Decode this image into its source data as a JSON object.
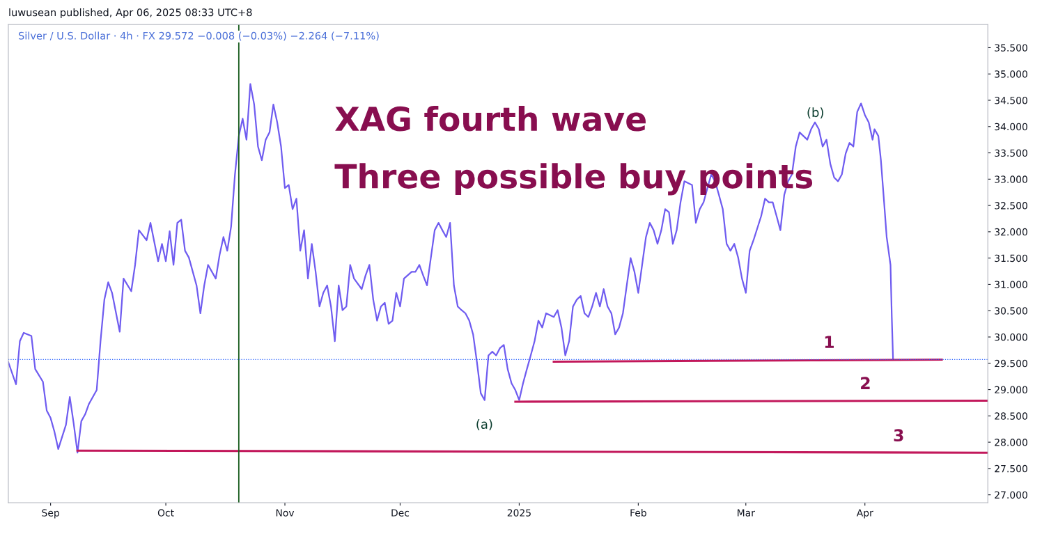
{
  "chart_data": {
    "type": "line",
    "subtitle": "Silver / U.S. Dollar · 4h · FX 29.572 −0.008 (−0.03%) −2.264 (−7.11%)",
    "annotations": [
      "luwusean published, Apr 06, 2025 08:33 UTC+8",
      "XAG fourth wave",
      "Three possible buy points",
      "1",
      "2",
      "3",
      "(a)",
      "(b)"
    ],
    "xlim": [
      "2024-08-21",
      "2025-05-03"
    ],
    "xticks": [
      {
        "value": "2024-09-01",
        "label": "Sep"
      },
      {
        "value": "2024-10-01",
        "label": "Oct"
      },
      {
        "value": "2024-11-01",
        "label": "Nov"
      },
      {
        "value": "2024-12-01",
        "label": "Dec"
      },
      {
        "value": "2025-01-01",
        "label": "2025"
      },
      {
        "value": "2025-02-01",
        "label": "Feb"
      },
      {
        "value": "2025-03-01",
        "label": "Mar"
      },
      {
        "value": "2025-04-01",
        "label": "Apr"
      }
    ],
    "ylim": [
      26.85,
      35.94
    ],
    "yticks": [
      {
        "value": 27,
        "label": "27.000"
      },
      {
        "value": 27.5,
        "label": "27.500"
      },
      {
        "value": 28,
        "label": "28.000"
      },
      {
        "value": 28.5,
        "label": "28.500"
      },
      {
        "value": 29,
        "label": "29.000"
      },
      {
        "value": 29.5,
        "label": "29.500"
      },
      {
        "value": 30,
        "label": "30.000"
      },
      {
        "value": 30.5,
        "label": "30.500"
      },
      {
        "value": 31,
        "label": "31.000"
      },
      {
        "value": 31.5,
        "label": "31.500"
      },
      {
        "value": 32,
        "label": "32.000"
      },
      {
        "value": 32.5,
        "label": "32.500"
      },
      {
        "value": 33,
        "label": "33.000"
      },
      {
        "value": 33.5,
        "label": "33.500"
      },
      {
        "value": 34,
        "label": "34.000"
      },
      {
        "value": 34.5,
        "label": "34.500"
      },
      {
        "value": 35,
        "label": "35.000"
      },
      {
        "value": 35.5,
        "label": "35.500"
      }
    ],
    "grid": false,
    "ref_lines": [
      {
        "axis": "x",
        "value": "2024-10-20",
        "color": "#1b5e20",
        "line_style": "solid"
      },
      {
        "axis": "y",
        "value": 29.572,
        "color": "#2962ff",
        "line_style": "dotted"
      }
    ],
    "series": [
      {
        "color": "#6f5cf0",
        "x": [
          "2024-08-21",
          "2024-08-23",
          "2024-08-24",
          "2024-08-25",
          "2024-08-27",
          "2024-08-28",
          "2024-08-30",
          "2024-08-31",
          "2024-09-01",
          "2024-09-02",
          "2024-09-03",
          "2024-09-05",
          "2024-09-06",
          "2024-09-07",
          "2024-09-08",
          "2024-09-09",
          "2024-09-10",
          "2024-09-11",
          "2024-09-13",
          "2024-09-14",
          "2024-09-15",
          "2024-09-16",
          "2024-09-17",
          "2024-09-19",
          "2024-09-20",
          "2024-09-22",
          "2024-09-23",
          "2024-09-24",
          "2024-09-26",
          "2024-09-27",
          "2024-09-29",
          "2024-09-30",
          "2024-10-01",
          "2024-10-02",
          "2024-10-03",
          "2024-10-04",
          "2024-10-05",
          "2024-10-06",
          "2024-10-07",
          "2024-10-09",
          "2024-10-10",
          "2024-10-11",
          "2024-10-12",
          "2024-10-14",
          "2024-10-15",
          "2024-10-16",
          "2024-10-17",
          "2024-10-18",
          "2024-10-19",
          "2024-10-20",
          "2024-10-21",
          "2024-10-22",
          "2024-10-23",
          "2024-10-24",
          "2024-10-25",
          "2024-10-26",
          "2024-10-27",
          "2024-10-28",
          "2024-10-29",
          "2024-10-30",
          "2024-10-31",
          "2024-11-01",
          "2024-11-02",
          "2024-11-03",
          "2024-11-04",
          "2024-11-05",
          "2024-11-06",
          "2024-11-07",
          "2024-11-08",
          "2024-11-09",
          "2024-11-10",
          "2024-11-11",
          "2024-11-12",
          "2024-11-13",
          "2024-11-14",
          "2024-11-15",
          "2024-11-16",
          "2024-11-17",
          "2024-11-18",
          "2024-11-19",
          "2024-11-21",
          "2024-11-22",
          "2024-11-23",
          "2024-11-24",
          "2024-11-25",
          "2024-11-26",
          "2024-11-27",
          "2024-11-28",
          "2024-11-29",
          "2024-11-30",
          "2024-12-01",
          "2024-12-02",
          "2024-12-04",
          "2024-12-05",
          "2024-12-06",
          "2024-12-07",
          "2024-12-08",
          "2024-12-10",
          "2024-12-11",
          "2024-12-12",
          "2024-12-13",
          "2024-12-14",
          "2024-12-15",
          "2024-12-16",
          "2024-12-17",
          "2024-12-18",
          "2024-12-19",
          "2024-12-20",
          "2024-12-21",
          "2024-12-22",
          "2024-12-23",
          "2024-12-24",
          "2024-12-25",
          "2024-12-26",
          "2024-12-27",
          "2024-12-28",
          "2024-12-29",
          "2024-12-30",
          "2024-12-31",
          "2025-01-01",
          "2025-01-02",
          "2025-01-03",
          "2025-01-04",
          "2025-01-05",
          "2025-01-06",
          "2025-01-07",
          "2025-01-08",
          "2025-01-10",
          "2025-01-11",
          "2025-01-12",
          "2025-01-13",
          "2025-01-14",
          "2025-01-15",
          "2025-01-16",
          "2025-01-17",
          "2025-01-18",
          "2025-01-19",
          "2025-01-20",
          "2025-01-21",
          "2025-01-22",
          "2025-01-23",
          "2025-01-24",
          "2025-01-25",
          "2025-01-26",
          "2025-01-27",
          "2025-01-28",
          "2025-01-29",
          "2025-01-30",
          "2025-01-31",
          "2025-02-01",
          "2025-02-02",
          "2025-02-03",
          "2025-02-04",
          "2025-02-05",
          "2025-02-06",
          "2025-02-07",
          "2025-02-08",
          "2025-02-09",
          "2025-02-10",
          "2025-02-11",
          "2025-02-12",
          "2025-02-13",
          "2025-02-15",
          "2025-02-16",
          "2025-02-17",
          "2025-02-18",
          "2025-02-19",
          "2025-02-20",
          "2025-02-21",
          "2025-02-22",
          "2025-02-23",
          "2025-02-24",
          "2025-02-25",
          "2025-02-26",
          "2025-02-27",
          "2025-02-28",
          "2025-03-01",
          "2025-03-02",
          "2025-03-03",
          "2025-03-05",
          "2025-03-06",
          "2025-03-07",
          "2025-03-08",
          "2025-03-09",
          "2025-03-10",
          "2025-03-11",
          "2025-03-12",
          "2025-03-13",
          "2025-03-14",
          "2025-03-15",
          "2025-03-16",
          "2025-03-17",
          "2025-03-18",
          "2025-03-19",
          "2025-03-20",
          "2025-03-21",
          "2025-03-22",
          "2025-03-23",
          "2025-03-24",
          "2025-03-25",
          "2025-03-26",
          "2025-03-27",
          "2025-03-28",
          "2025-03-29",
          "2025-03-30",
          "2025-03-31",
          "2025-04-01",
          "2025-04-02",
          "2025-04-03",
          "2025-04-03T12:00",
          "2025-04-04T12:00",
          "2025-04-05T04:00",
          "2025-04-06T00:00",
          "2025-04-06T16:00",
          "2025-04-07T16:00",
          "2025-04-08T00:00",
          "2025-04-08T08:00"
        ],
        "values": [
          29.52,
          29.1,
          29.92,
          30.08,
          30.02,
          29.39,
          29.15,
          28.6,
          28.46,
          28.2,
          27.87,
          28.33,
          28.86,
          28.36,
          27.8,
          28.4,
          28.53,
          28.73,
          28.99,
          29.92,
          30.71,
          31.04,
          30.84,
          30.1,
          31.11,
          30.87,
          31.37,
          32.03,
          31.84,
          32.17,
          31.44,
          31.77,
          31.44,
          32.01,
          31.37,
          32.17,
          32.23,
          31.64,
          31.51,
          30.98,
          30.45,
          30.98,
          31.37,
          31.11,
          31.56,
          31.9,
          31.64,
          32.1,
          33.09,
          33.82,
          34.15,
          33.75,
          34.81,
          34.42,
          33.62,
          33.36,
          33.75,
          33.89,
          34.42,
          34.08,
          33.62,
          32.83,
          32.89,
          32.43,
          32.63,
          31.64,
          32.03,
          31.11,
          31.77,
          31.24,
          30.58,
          30.84,
          30.98,
          30.58,
          29.92,
          30.98,
          30.51,
          30.58,
          31.37,
          31.11,
          30.91,
          31.17,
          31.37,
          30.71,
          30.31,
          30.58,
          30.65,
          30.25,
          30.31,
          30.84,
          30.58,
          31.11,
          31.24,
          31.24,
          31.37,
          31.17,
          30.98,
          32.03,
          32.17,
          32.03,
          31.9,
          32.17,
          30.98,
          30.58,
          30.51,
          30.45,
          30.31,
          30.05,
          29.52,
          28.93,
          28.8,
          29.65,
          29.72,
          29.65,
          29.79,
          29.85,
          29.39,
          29.12,
          28.99,
          28.8,
          29.12,
          29.39,
          29.65,
          29.92,
          30.31,
          30.18,
          30.45,
          30.38,
          30.51,
          30.18,
          29.65,
          29.92,
          30.58,
          30.71,
          30.78,
          30.45,
          30.38,
          30.58,
          30.84,
          30.58,
          30.91,
          30.58,
          30.45,
          30.05,
          30.18,
          30.45,
          30.98,
          31.5,
          31.24,
          30.84,
          31.37,
          31.9,
          32.17,
          32.03,
          31.77,
          32.03,
          32.43,
          32.37,
          31.77,
          32.03,
          32.56,
          32.96,
          32.89,
          32.17,
          32.43,
          32.56,
          32.83,
          33.09,
          32.96,
          32.7,
          32.43,
          31.77,
          31.64,
          31.77,
          31.51,
          31.11,
          30.84,
          31.64,
          31.84,
          32.3,
          32.63,
          32.56,
          32.56,
          32.3,
          32.03,
          32.7,
          32.96,
          33.09,
          33.62,
          33.89,
          33.82,
          33.75,
          33.95,
          34.08,
          33.95,
          33.62,
          33.75,
          33.29,
          33.03,
          32.96,
          33.09,
          33.49,
          33.69,
          33.62,
          34.28,
          34.44,
          34.22,
          34.08,
          33.75,
          33.95,
          33.82,
          33.36,
          32.56,
          31.9,
          31.37,
          30.38,
          29.57
        ]
      },
      {
        "color": "#c2185b",
        "x": [
          "2025-01-10",
          "2025-04-21"
        ],
        "values": [
          29.53,
          29.57
        ]
      },
      {
        "color": "#c2185b",
        "x": [
          "2024-12-31",
          "2025-05-03"
        ],
        "values": [
          28.77,
          28.79
        ]
      },
      {
        "color": "#c2185b",
        "x": [
          "2024-09-08",
          "2025-05-03"
        ],
        "values": [
          27.84,
          27.8
        ]
      }
    ]
  }
}
